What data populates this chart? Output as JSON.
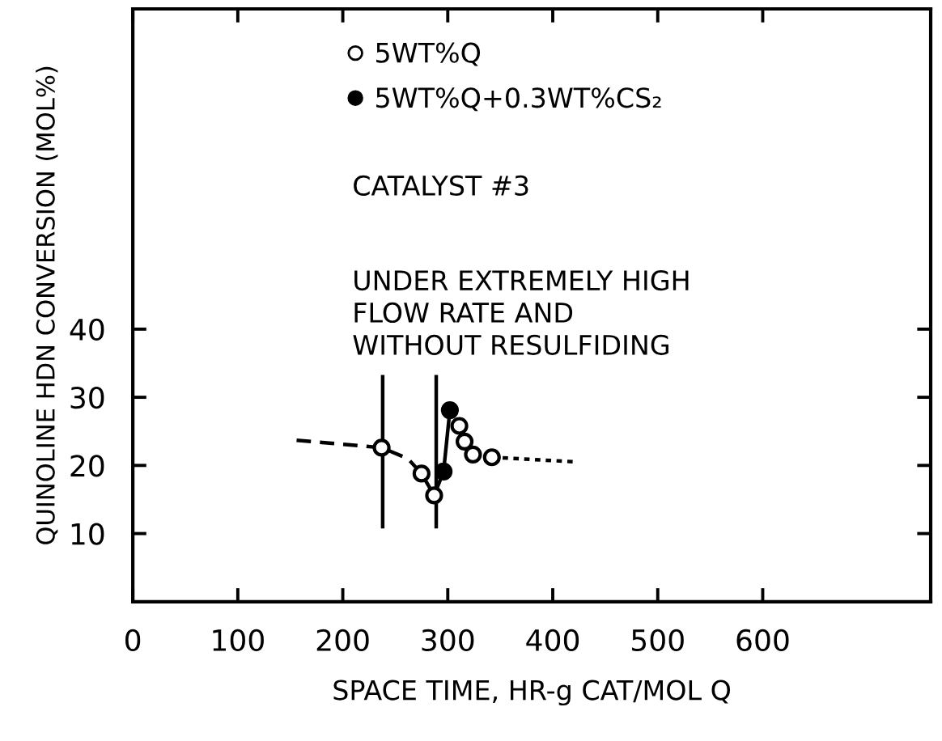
{
  "chart_data": {
    "type": "scatter",
    "xlabel": "SPACE TIME, HR-g CAT/MOL Q",
    "ylabel": "QUINOLINE HDN CONVERSION (MOL%)",
    "xlim": [
      0,
      760
    ],
    "xticks": [
      0,
      100,
      200,
      300,
      400,
      500,
      600
    ],
    "ylim": [
      0,
      87
    ],
    "yticks": [
      10,
      20,
      30,
      40
    ],
    "grid": false,
    "legend": "top",
    "series": [
      {
        "type": "line",
        "line_style": "dashed",
        "marker": "none",
        "color": "#000000",
        "x": [
          156,
          237,
          262,
          275,
          287
        ],
        "values": [
          23.7,
          22.6,
          21,
          18.8,
          15.6
        ]
      },
      {
        "type": "line",
        "line_style": "dotted",
        "marker": "none",
        "color": "#000000",
        "x": [
          342,
          424
        ],
        "values": [
          21.2,
          20.5
        ]
      },
      {
        "type": "line",
        "line_style": "solid",
        "marker": "none",
        "color": "#000000",
        "x": [
          238,
          238
        ],
        "values": [
          33,
          11
        ]
      },
      {
        "type": "line",
        "line_style": "solid",
        "marker": "none",
        "color": "#000000",
        "x": [
          289,
          289
        ],
        "values": [
          33,
          11
        ]
      },
      {
        "type": "line",
        "line_style": "solid",
        "marker": "none",
        "color": "#000000",
        "x": [
          287,
          296,
          302
        ],
        "values": [
          15.6,
          19.1,
          28.1
        ]
      },
      {
        "name": "5WT%Q",
        "marker": "circle",
        "color": "#ffffff",
        "x": [
          237,
          275,
          287,
          311,
          316,
          324,
          342
        ],
        "values": [
          22.6,
          18.8,
          15.6,
          25.8,
          23.5,
          21.6,
          21.2
        ]
      },
      {
        "name": "5WT%Q+0.3WT%CS₂",
        "marker": "circle",
        "color": "#000000",
        "x": [
          296,
          302
        ],
        "values": [
          19.1,
          28.1
        ]
      }
    ],
    "annotations": [
      "CATALYST #3",
      "UNDER EXTREMELY HIGH\nFLOW RATE AND\nWITHOUT RESULFIDING"
    ]
  }
}
